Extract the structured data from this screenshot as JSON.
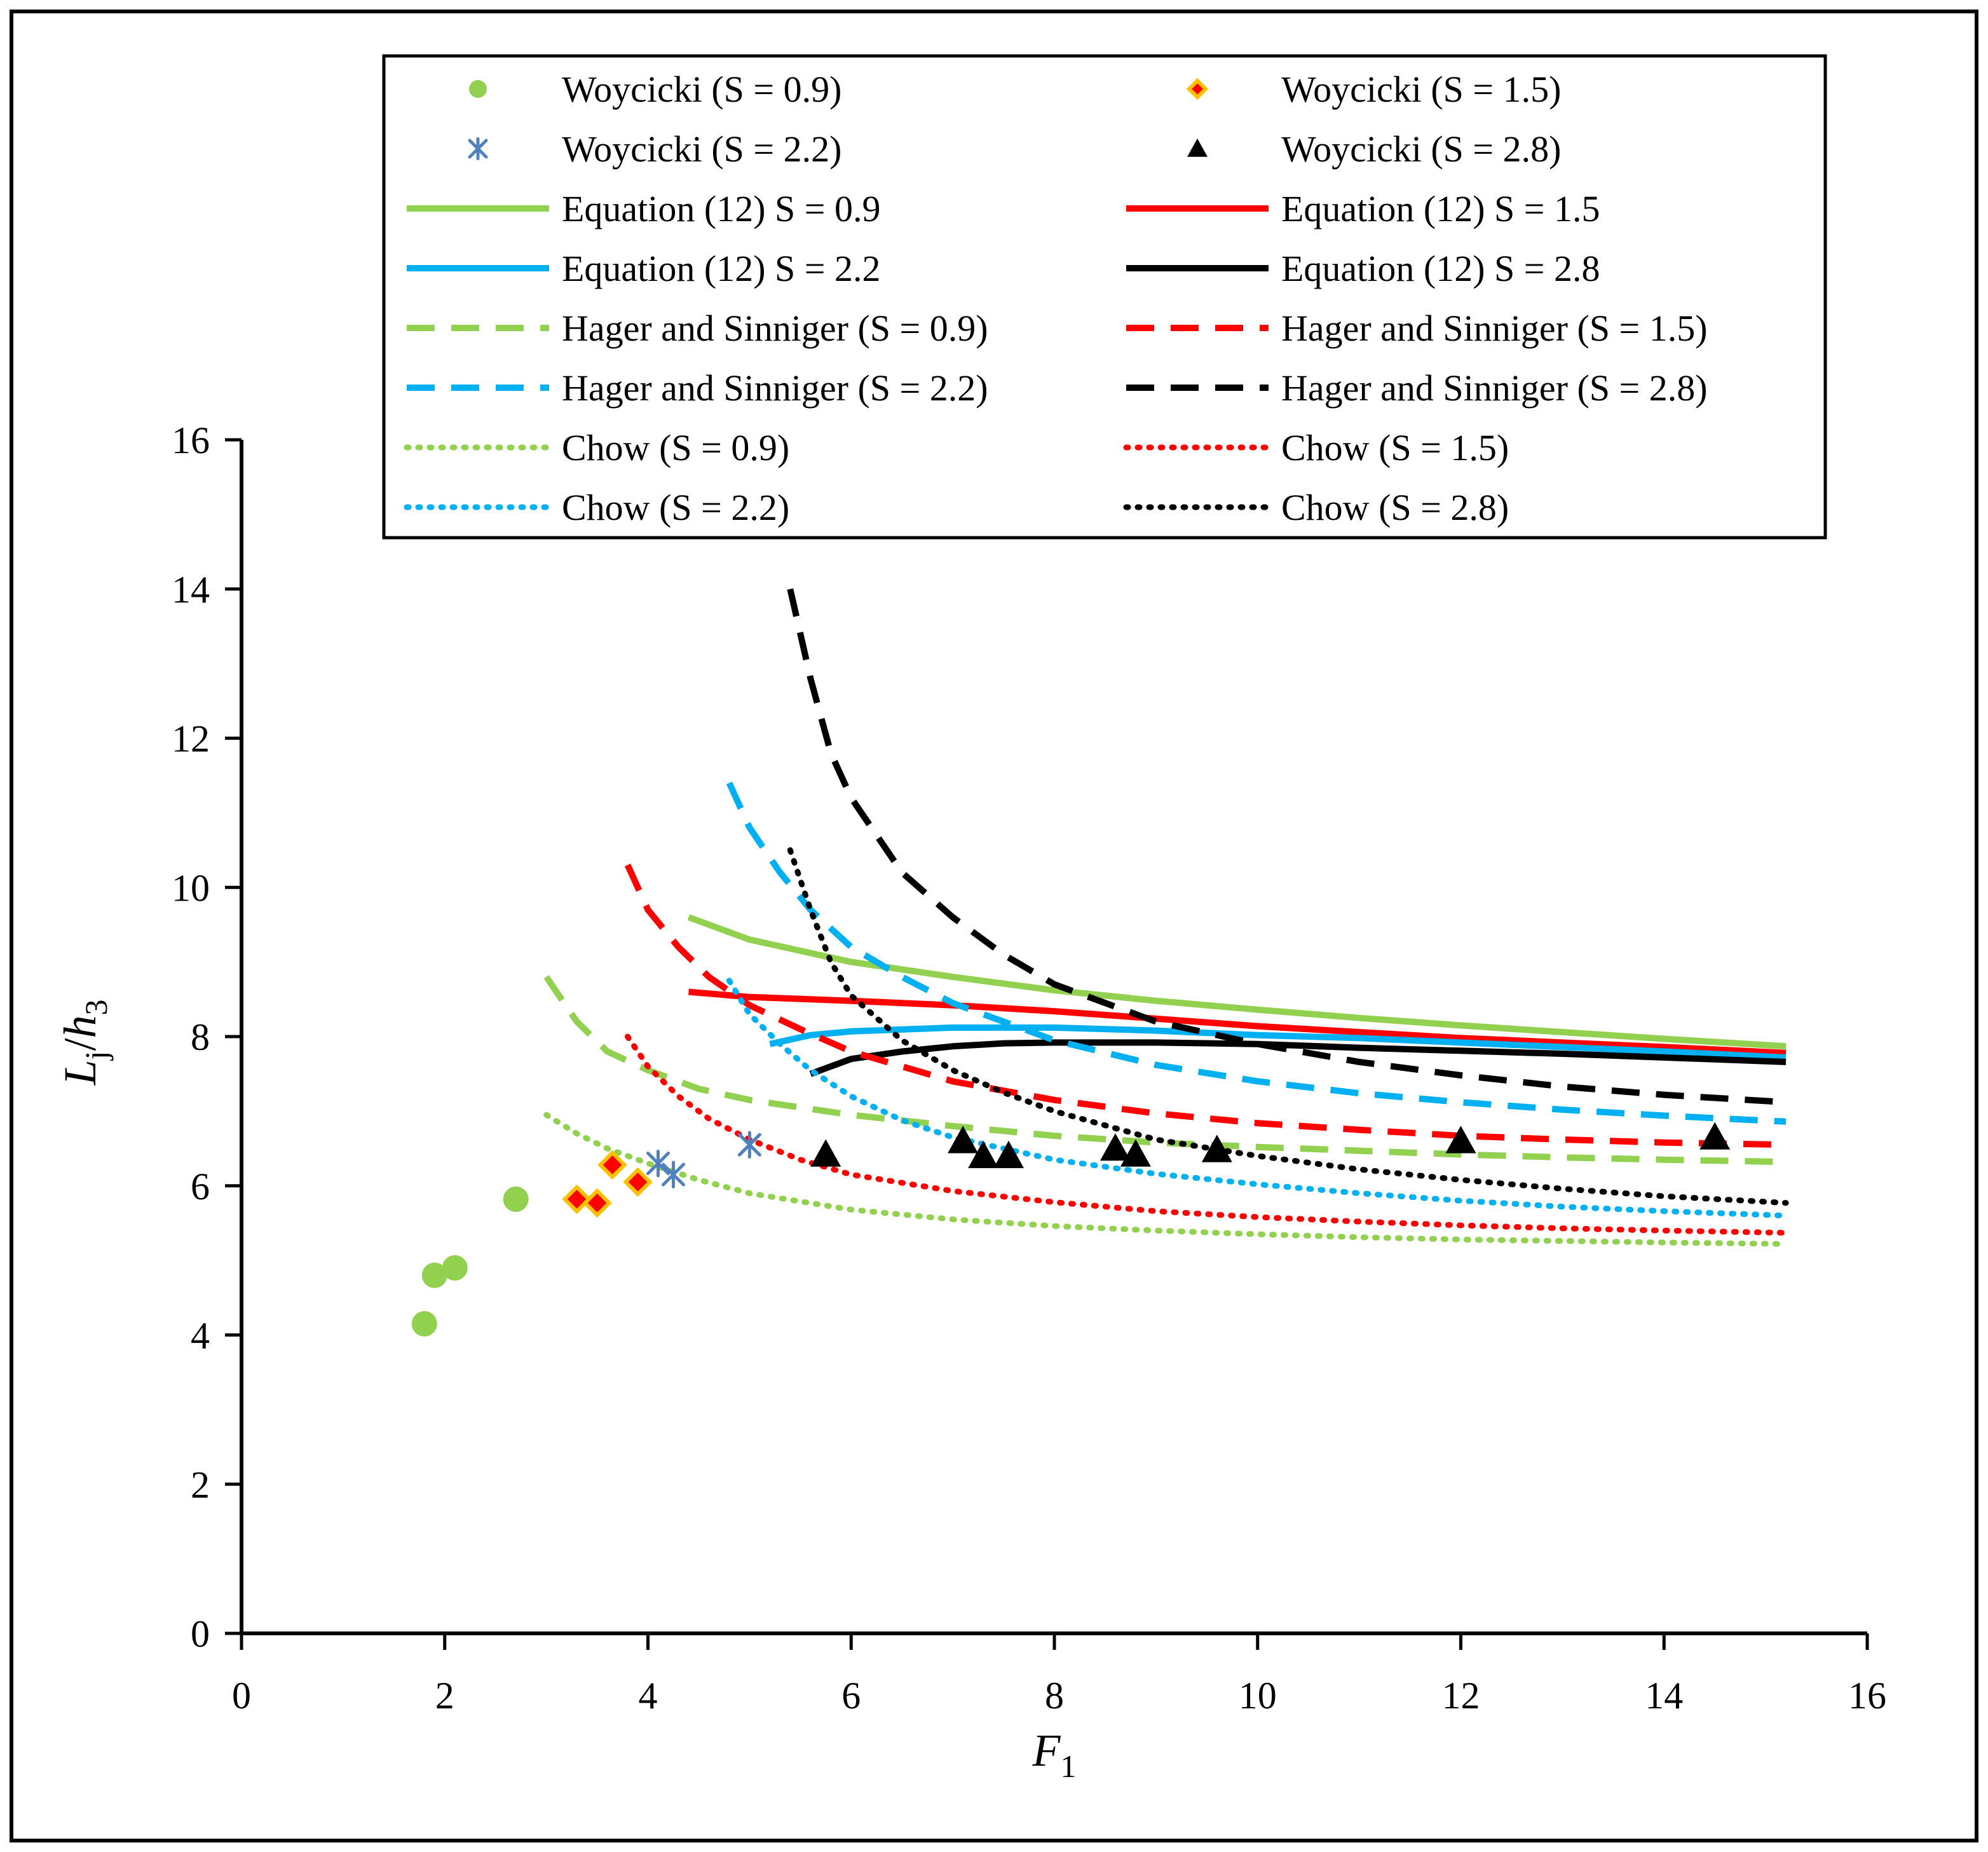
{
  "chart_data": {
    "type": "scatter",
    "xlabel_main": "F",
    "xlabel_sub": "1",
    "ylabel": {
      "main": "L",
      "sub": "j",
      "sep": "/",
      "h": "h",
      "h_sub": "3"
    },
    "xlim": [
      0,
      16
    ],
    "ylim": [
      0,
      16
    ],
    "xticks": [
      0,
      2,
      4,
      6,
      8,
      10,
      12,
      14,
      16
    ],
    "yticks": [
      0,
      2,
      4,
      6,
      8,
      10,
      12,
      14,
      16
    ],
    "legend_position": "top",
    "colors": {
      "green": "#92d050",
      "red": "#ff0000",
      "blue": "#00b0f0",
      "black": "#000000",
      "steel": "#4f81bd",
      "orange": "#ffc000"
    },
    "series": [
      {
        "id": "woy09",
        "name": "Woycicki (S = 0.9)",
        "kind": "marker",
        "marker": "circle",
        "color": "green",
        "points": [
          [
            1.8,
            4.15
          ],
          [
            1.9,
            4.8
          ],
          [
            2.1,
            4.9
          ],
          [
            2.7,
            5.82
          ]
        ]
      },
      {
        "id": "woy15",
        "name": "Woycicki (S = 1.5)",
        "kind": "marker",
        "marker": "diamond",
        "color": "red",
        "points": [
          [
            3.3,
            5.82
          ],
          [
            3.5,
            5.77
          ],
          [
            3.65,
            6.28
          ],
          [
            3.9,
            6.05
          ]
        ]
      },
      {
        "id": "woy22",
        "name": "Woycicki (S = 2.2)",
        "kind": "marker",
        "marker": "star",
        "color": "steel",
        "points": [
          [
            4.1,
            6.3
          ],
          [
            4.25,
            6.15
          ],
          [
            5.0,
            6.55
          ]
        ]
      },
      {
        "id": "woy28",
        "name": "Woycicki (S = 2.8)",
        "kind": "marker",
        "marker": "triangle",
        "color": "black",
        "points": [
          [
            5.75,
            6.42
          ],
          [
            7.1,
            6.6
          ],
          [
            7.3,
            6.4
          ],
          [
            7.55,
            6.4
          ],
          [
            8.6,
            6.5
          ],
          [
            8.8,
            6.42
          ],
          [
            9.6,
            6.48
          ],
          [
            12.0,
            6.6
          ],
          [
            14.5,
            6.65
          ]
        ]
      },
      {
        "id": "eq09",
        "name": "Equation (12) S = 0.9",
        "kind": "line",
        "style": "solid",
        "color": "green",
        "points": [
          [
            4.4,
            9.6
          ],
          [
            5.0,
            9.3
          ],
          [
            6.0,
            9.0
          ],
          [
            7.0,
            8.8
          ],
          [
            8.0,
            8.62
          ],
          [
            9.0,
            8.48
          ],
          [
            10.0,
            8.36
          ],
          [
            11.0,
            8.25
          ],
          [
            12.0,
            8.15
          ],
          [
            13.0,
            8.06
          ],
          [
            14.0,
            7.97
          ],
          [
            15.2,
            7.87
          ]
        ]
      },
      {
        "id": "eq15",
        "name": "Equation (12) S = 1.5",
        "kind": "line",
        "style": "solid",
        "color": "red",
        "points": [
          [
            4.4,
            8.6
          ],
          [
            5.0,
            8.53
          ],
          [
            6.0,
            8.48
          ],
          [
            7.0,
            8.42
          ],
          [
            8.0,
            8.34
          ],
          [
            9.0,
            8.24
          ],
          [
            10.0,
            8.14
          ],
          [
            11.0,
            8.06
          ],
          [
            12.0,
            7.98
          ],
          [
            13.0,
            7.92
          ],
          [
            14.0,
            7.86
          ],
          [
            15.2,
            7.78
          ]
        ]
      },
      {
        "id": "eq22",
        "name": "Equation (12) S = 2.2",
        "kind": "line",
        "style": "solid",
        "color": "blue",
        "points": [
          [
            5.2,
            7.9
          ],
          [
            5.6,
            8.02
          ],
          [
            6.0,
            8.07
          ],
          [
            7.0,
            8.12
          ],
          [
            8.0,
            8.12
          ],
          [
            9.0,
            8.08
          ],
          [
            10.0,
            8.02
          ],
          [
            11.0,
            7.98
          ],
          [
            12.0,
            7.92
          ],
          [
            13.0,
            7.86
          ],
          [
            14.0,
            7.8
          ],
          [
            15.2,
            7.72
          ]
        ]
      },
      {
        "id": "eq28",
        "name": "Equation (12) S = 2.8",
        "kind": "line",
        "style": "solid",
        "color": "black",
        "points": [
          [
            5.6,
            7.5
          ],
          [
            6.0,
            7.7
          ],
          [
            6.5,
            7.8
          ],
          [
            7.0,
            7.87
          ],
          [
            7.5,
            7.91
          ],
          [
            8.0,
            7.92
          ],
          [
            9.0,
            7.92
          ],
          [
            10.0,
            7.9
          ],
          [
            11.0,
            7.85
          ],
          [
            12.0,
            7.81
          ],
          [
            13.0,
            7.77
          ],
          [
            14.0,
            7.72
          ],
          [
            15.2,
            7.66
          ]
        ]
      },
      {
        "id": "hs09",
        "name": "Hager and Sinniger (S = 0.9)",
        "kind": "line",
        "style": "dash",
        "color": "green",
        "points": [
          [
            3.0,
            8.8
          ],
          [
            3.3,
            8.2
          ],
          [
            3.6,
            7.8
          ],
          [
            4.0,
            7.55
          ],
          [
            4.5,
            7.3
          ],
          [
            5.0,
            7.15
          ],
          [
            6.0,
            6.95
          ],
          [
            7.0,
            6.8
          ],
          [
            8.0,
            6.67
          ],
          [
            9.0,
            6.58
          ],
          [
            10.0,
            6.52
          ],
          [
            11.0,
            6.47
          ],
          [
            12.0,
            6.42
          ],
          [
            13.0,
            6.38
          ],
          [
            14.0,
            6.35
          ],
          [
            15.2,
            6.32
          ]
        ]
      },
      {
        "id": "hs15",
        "name": "Hager and Sinniger (S = 1.5)",
        "kind": "line",
        "style": "dash",
        "color": "red",
        "points": [
          [
            3.8,
            10.3
          ],
          [
            4.0,
            9.7
          ],
          [
            4.3,
            9.2
          ],
          [
            4.6,
            8.8
          ],
          [
            5.0,
            8.42
          ],
          [
            5.5,
            8.1
          ],
          [
            6.0,
            7.8
          ],
          [
            7.0,
            7.4
          ],
          [
            8.0,
            7.15
          ],
          [
            9.0,
            6.97
          ],
          [
            10.0,
            6.84
          ],
          [
            11.0,
            6.75
          ],
          [
            12.0,
            6.67
          ],
          [
            13.0,
            6.62
          ],
          [
            14.0,
            6.58
          ],
          [
            15.2,
            6.55
          ]
        ]
      },
      {
        "id": "hs22",
        "name": "Hager and Sinniger (S = 2.2)",
        "kind": "line",
        "style": "dash",
        "color": "blue",
        "points": [
          [
            4.8,
            11.4
          ],
          [
            5.0,
            10.8
          ],
          [
            5.3,
            10.2
          ],
          [
            5.6,
            9.7
          ],
          [
            6.0,
            9.2
          ],
          [
            6.5,
            8.8
          ],
          [
            7.0,
            8.45
          ],
          [
            8.0,
            7.95
          ],
          [
            9.0,
            7.62
          ],
          [
            10.0,
            7.4
          ],
          [
            11.0,
            7.24
          ],
          [
            12.0,
            7.12
          ],
          [
            13.0,
            7.02
          ],
          [
            14.0,
            6.94
          ],
          [
            15.2,
            6.86
          ]
        ]
      },
      {
        "id": "hs28",
        "name": "Hager and Sinniger (S = 2.8)",
        "kind": "line",
        "style": "dash",
        "color": "black",
        "points": [
          [
            5.4,
            14.0
          ],
          [
            5.6,
            12.8
          ],
          [
            5.8,
            11.8
          ],
          [
            6.0,
            11.2
          ],
          [
            6.5,
            10.2
          ],
          [
            7.0,
            9.6
          ],
          [
            7.5,
            9.1
          ],
          [
            8.0,
            8.7
          ],
          [
            9.0,
            8.2
          ],
          [
            10.0,
            7.9
          ],
          [
            11.0,
            7.66
          ],
          [
            12.0,
            7.48
          ],
          [
            13.0,
            7.33
          ],
          [
            14.0,
            7.22
          ],
          [
            15.2,
            7.12
          ]
        ]
      },
      {
        "id": "ch09",
        "name": "Chow (S = 0.9)",
        "kind": "line",
        "style": "dot",
        "color": "green",
        "points": [
          [
            3.0,
            6.95
          ],
          [
            3.3,
            6.7
          ],
          [
            3.6,
            6.5
          ],
          [
            4.0,
            6.3
          ],
          [
            4.5,
            6.08
          ],
          [
            5.0,
            5.9
          ],
          [
            6.0,
            5.68
          ],
          [
            7.0,
            5.55
          ],
          [
            8.0,
            5.46
          ],
          [
            9.0,
            5.4
          ],
          [
            10.0,
            5.35
          ],
          [
            11.0,
            5.31
          ],
          [
            12.0,
            5.28
          ],
          [
            13.0,
            5.26
          ],
          [
            14.0,
            5.24
          ],
          [
            15.2,
            5.22
          ]
        ]
      },
      {
        "id": "ch15",
        "name": "Chow (S = 1.5)",
        "kind": "line",
        "style": "dot",
        "color": "red",
        "points": [
          [
            3.8,
            8.0
          ],
          [
            4.0,
            7.6
          ],
          [
            4.3,
            7.2
          ],
          [
            4.6,
            6.9
          ],
          [
            5.0,
            6.62
          ],
          [
            5.5,
            6.35
          ],
          [
            6.0,
            6.15
          ],
          [
            7.0,
            5.93
          ],
          [
            8.0,
            5.78
          ],
          [
            9.0,
            5.66
          ],
          [
            10.0,
            5.58
          ],
          [
            11.0,
            5.52
          ],
          [
            12.0,
            5.47
          ],
          [
            13.0,
            5.43
          ],
          [
            14.0,
            5.4
          ],
          [
            15.2,
            5.37
          ]
        ]
      },
      {
        "id": "ch22",
        "name": "Chow (S = 2.2)",
        "kind": "line",
        "style": "dot",
        "color": "blue",
        "points": [
          [
            4.8,
            8.75
          ],
          [
            5.0,
            8.3
          ],
          [
            5.3,
            7.9
          ],
          [
            5.6,
            7.55
          ],
          [
            6.0,
            7.2
          ],
          [
            6.5,
            6.88
          ],
          [
            7.0,
            6.65
          ],
          [
            8.0,
            6.35
          ],
          [
            9.0,
            6.16
          ],
          [
            10.0,
            6.02
          ],
          [
            11.0,
            5.9
          ],
          [
            12.0,
            5.8
          ],
          [
            13.0,
            5.72
          ],
          [
            14.0,
            5.66
          ],
          [
            15.2,
            5.6
          ]
        ]
      },
      {
        "id": "ch28",
        "name": "Chow (S = 2.8)",
        "kind": "line",
        "style": "dot",
        "color": "black",
        "points": [
          [
            5.4,
            10.5
          ],
          [
            5.6,
            9.7
          ],
          [
            5.8,
            9.0
          ],
          [
            6.0,
            8.55
          ],
          [
            6.5,
            7.95
          ],
          [
            7.0,
            7.55
          ],
          [
            7.5,
            7.25
          ],
          [
            8.0,
            7.0
          ],
          [
            9.0,
            6.62
          ],
          [
            10.0,
            6.4
          ],
          [
            11.0,
            6.22
          ],
          [
            12.0,
            6.08
          ],
          [
            13.0,
            5.96
          ],
          [
            14.0,
            5.86
          ],
          [
            15.2,
            5.77
          ]
        ]
      }
    ]
  }
}
